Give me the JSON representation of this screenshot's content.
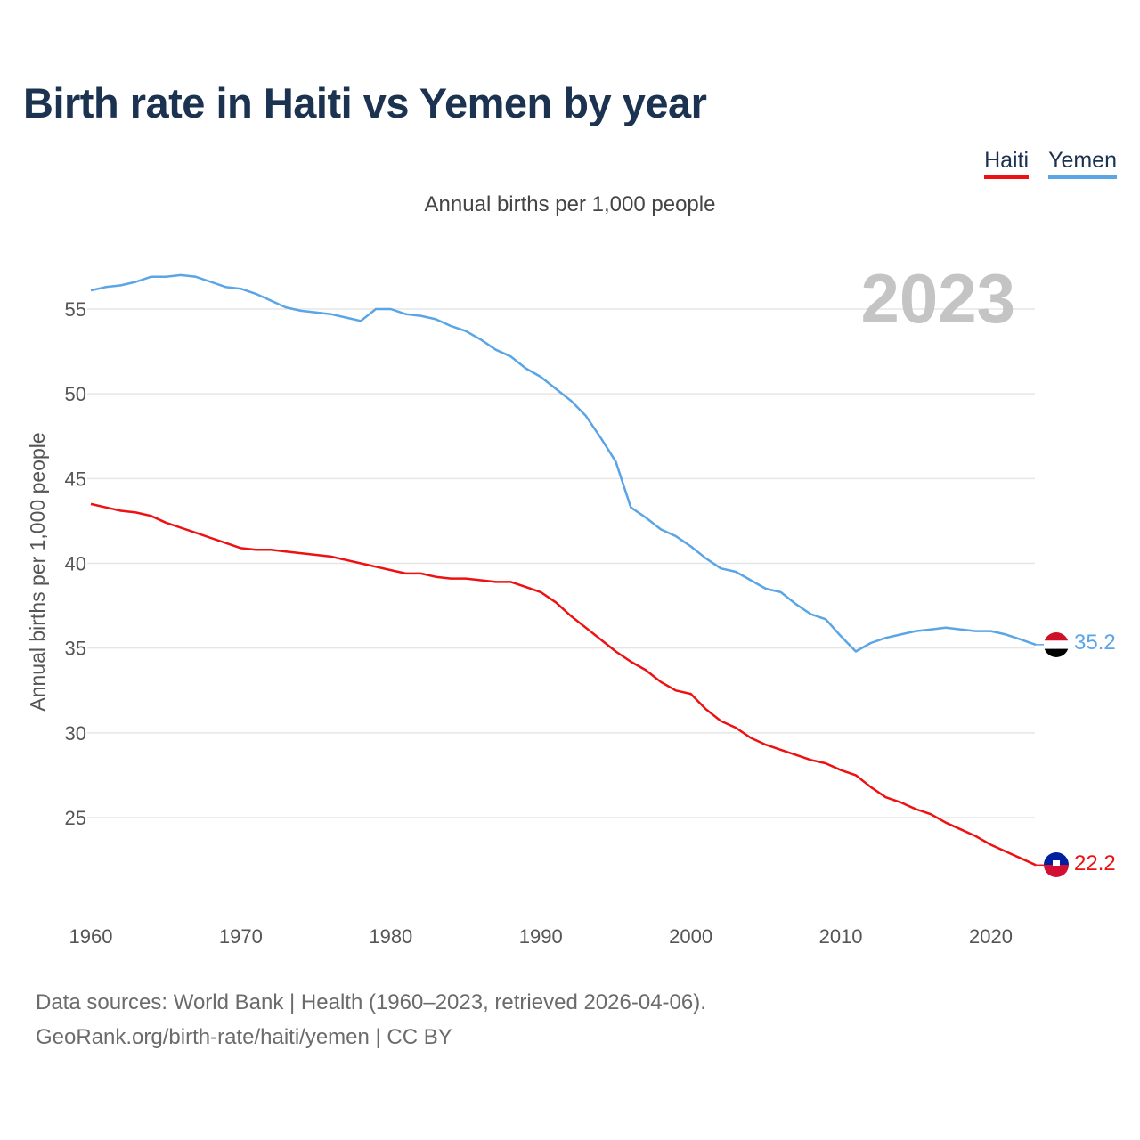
{
  "title": "Birth rate in Haiti vs Yemen by year",
  "legend": {
    "haiti": "Haiti",
    "yemen": "Yemen"
  },
  "subtitle": "Annual births per 1,000 people",
  "source": {
    "line1": "Data sources: World Bank | Health (1960–2023, retrieved 2026-04-06).",
    "line2": "GeoRank.org/birth-rate/haiti/yemen | CC BY"
  },
  "colors": {
    "haiti": "#ee1111",
    "yemen": "#5aa5e6",
    "grid": "#e6e6e6"
  },
  "chart_data": {
    "type": "line",
    "title": "Birth rate in Haiti vs Yemen by year",
    "xlabel": "",
    "ylabel": "Annual births per 1,000 people",
    "year_label": "2023",
    "xlim": [
      1960,
      2023
    ],
    "ylim": [
      20,
      58
    ],
    "xticks": [
      1960,
      1970,
      1980,
      1990,
      2000,
      2010,
      2020
    ],
    "yticks": [
      25,
      30,
      35,
      40,
      45,
      50,
      55
    ],
    "grid": true,
    "legend_position": "top-right",
    "x": [
      1960,
      1961,
      1962,
      1963,
      1964,
      1965,
      1966,
      1967,
      1968,
      1969,
      1970,
      1971,
      1972,
      1973,
      1974,
      1975,
      1976,
      1977,
      1978,
      1979,
      1980,
      1981,
      1982,
      1983,
      1984,
      1985,
      1986,
      1987,
      1988,
      1989,
      1990,
      1991,
      1992,
      1993,
      1994,
      1995,
      1996,
      1997,
      1998,
      1999,
      2000,
      2001,
      2002,
      2003,
      2004,
      2005,
      2006,
      2007,
      2008,
      2009,
      2010,
      2011,
      2012,
      2013,
      2014,
      2015,
      2016,
      2017,
      2018,
      2019,
      2020,
      2021,
      2022,
      2023
    ],
    "series": [
      {
        "name": "Yemen",
        "color": "#5aa5e6",
        "end_label": "35.2",
        "values": [
          56.1,
          56.3,
          56.4,
          56.6,
          56.9,
          56.9,
          57.0,
          56.9,
          56.6,
          56.3,
          56.2,
          55.9,
          55.5,
          55.1,
          54.9,
          54.8,
          54.7,
          54.5,
          54.3,
          55.0,
          55.0,
          54.7,
          54.6,
          54.4,
          54.0,
          53.7,
          53.2,
          52.6,
          52.2,
          51.5,
          51.0,
          50.3,
          49.6,
          48.7,
          47.4,
          46.0,
          43.3,
          42.7,
          42.0,
          41.6,
          41.0,
          40.3,
          39.7,
          39.5,
          39.0,
          38.5,
          38.3,
          37.6,
          37.0,
          36.7,
          35.7,
          34.8,
          35.3,
          35.6,
          35.8,
          36.0,
          36.1,
          36.2,
          36.1,
          36.0,
          36.0,
          35.8,
          35.5,
          35.2
        ]
      },
      {
        "name": "Haiti",
        "color": "#ee1111",
        "end_label": "22.2",
        "values": [
          43.5,
          43.3,
          43.1,
          43.0,
          42.8,
          42.4,
          42.1,
          41.8,
          41.5,
          41.2,
          40.9,
          40.8,
          40.8,
          40.7,
          40.6,
          40.5,
          40.4,
          40.2,
          40.0,
          39.8,
          39.6,
          39.4,
          39.4,
          39.2,
          39.1,
          39.1,
          39.0,
          38.9,
          38.9,
          38.6,
          38.3,
          37.7,
          36.9,
          36.2,
          35.5,
          34.8,
          34.2,
          33.7,
          33.0,
          32.5,
          32.3,
          31.4,
          30.7,
          30.3,
          29.7,
          29.3,
          29.0,
          28.7,
          28.4,
          28.2,
          27.8,
          27.5,
          26.8,
          26.2,
          25.9,
          25.5,
          25.2,
          24.7,
          24.3,
          23.9,
          23.4,
          23.0,
          22.6,
          22.2
        ]
      }
    ]
  }
}
